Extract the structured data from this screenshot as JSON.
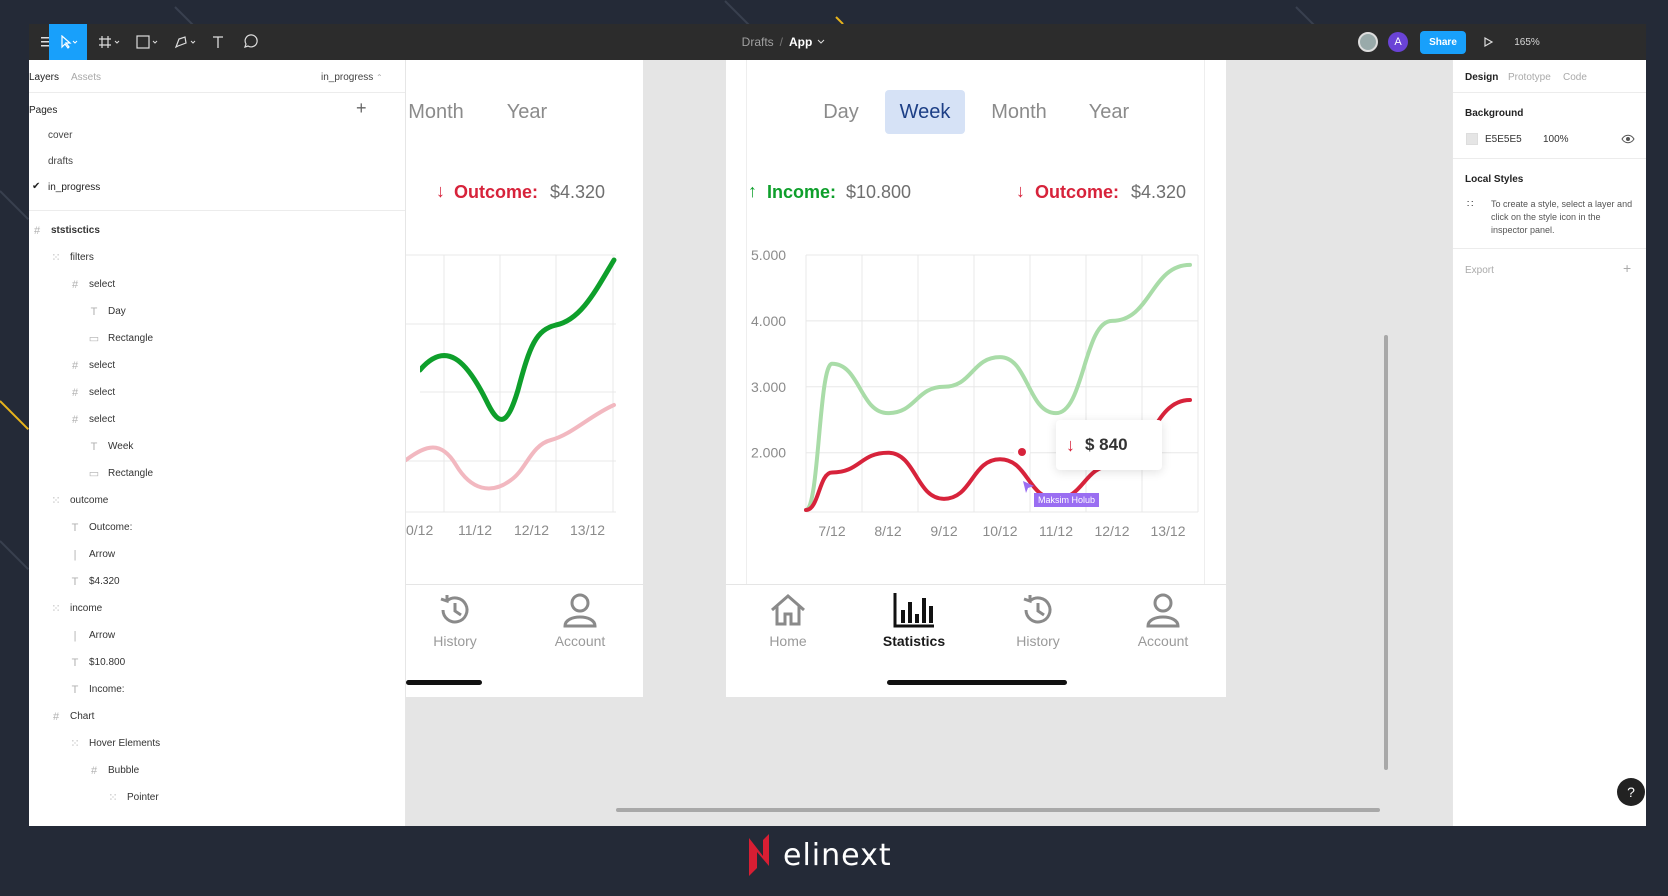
{
  "toolbar": {
    "breadcrumb_parent": "Drafts",
    "breadcrumb_sep": "/",
    "breadcrumb_current": "App",
    "share_label": "Share",
    "zoom": "165%",
    "avatar_letter": "A"
  },
  "left_panel": {
    "tab_layers": "Layers",
    "tab_assets": "Assets",
    "current_page": "in_progress",
    "pages_heading": "Pages",
    "pages": [
      "cover",
      "drafts",
      "in_progress"
    ],
    "layers": [
      {
        "label": "ststisctics",
        "icon": "frame-icon"
      },
      {
        "label": "filters",
        "icon": "group-icon"
      },
      {
        "label": "select",
        "icon": "frame-icon"
      },
      {
        "label": "Day",
        "icon": "text-icon"
      },
      {
        "label": "Rectangle",
        "icon": "rectangle-icon"
      },
      {
        "label": "select",
        "icon": "frame-icon"
      },
      {
        "label": "select",
        "icon": "frame-icon"
      },
      {
        "label": "select",
        "icon": "frame-icon"
      },
      {
        "label": "Week",
        "icon": "text-icon"
      },
      {
        "label": "Rectangle",
        "icon": "rectangle-icon"
      },
      {
        "label": "outcome",
        "icon": "group-icon"
      },
      {
        "label": "Outcome:",
        "icon": "text-icon"
      },
      {
        "label": "Arrow",
        "icon": "line-icon"
      },
      {
        "label": "$4.320",
        "icon": "text-icon"
      },
      {
        "label": "income",
        "icon": "group-icon"
      },
      {
        "label": "Arrow",
        "icon": "line-icon"
      },
      {
        "label": "$10.800",
        "icon": "text-icon"
      },
      {
        "label": "Income:",
        "icon": "text-icon"
      },
      {
        "label": "Chart",
        "icon": "frame-icon"
      },
      {
        "label": "Hover Elements",
        "icon": "group-icon"
      },
      {
        "label": "Bubble",
        "icon": "frame-icon"
      },
      {
        "label": "Pointer",
        "icon": "group-icon"
      }
    ]
  },
  "right_panel": {
    "tab_design": "Design",
    "tab_prototype": "Prototype",
    "tab_code": "Code",
    "background_heading": "Background",
    "background_hex": "E5E5E5",
    "background_opacity": "100%",
    "local_styles_heading": "Local Styles",
    "local_styles_text": "To create a style, select a layer and click on the style icon in the inspector panel.",
    "export_heading": "Export"
  },
  "frame_left": {
    "tabs": [
      "Month",
      "Year"
    ],
    "outcome_label": "Outcome:",
    "outcome_value": "$4.320",
    "x_ticks": [
      "0/12",
      "11/12",
      "12/12",
      "13/12"
    ],
    "nav": [
      "History",
      "Account"
    ]
  },
  "frame_main": {
    "tabs": [
      "Day",
      "Week",
      "Month",
      "Year"
    ],
    "active_tab": "Week",
    "income_label": "Income:",
    "income_value": "$10.800",
    "outcome_label": "Outcome:",
    "outcome_value": "$4.320",
    "tooltip_value": "$ 840",
    "cursor_name": "Maksim Holub",
    "nav": [
      "Home",
      "Statistics",
      "History",
      "Account"
    ],
    "active_nav": "Statistics"
  },
  "chart_data": {
    "type": "line",
    "x": [
      "7/12",
      "8/12",
      "9/12",
      "10/12",
      "11/12",
      "12/12",
      "13/12"
    ],
    "y_ticks": [
      "5.000",
      "4.000",
      "3.000",
      "2.000"
    ],
    "ylim": [
      1100,
      5000
    ],
    "series": [
      {
        "name": "Income",
        "color": "#a9dca8",
        "values": [
          3350,
          2600,
          3000,
          3450,
          2600,
          4000,
          4850
        ]
      },
      {
        "name": "Outcome",
        "color": "#d7233b",
        "values": [
          1700,
          2000,
          1300,
          1900,
          1300,
          1800,
          2800
        ]
      }
    ],
    "colors": {
      "income": "#0e9f2b",
      "outcome": "#d7233b",
      "accent": "#1d3f86"
    }
  },
  "brand": {
    "logo_text": "elinext"
  }
}
